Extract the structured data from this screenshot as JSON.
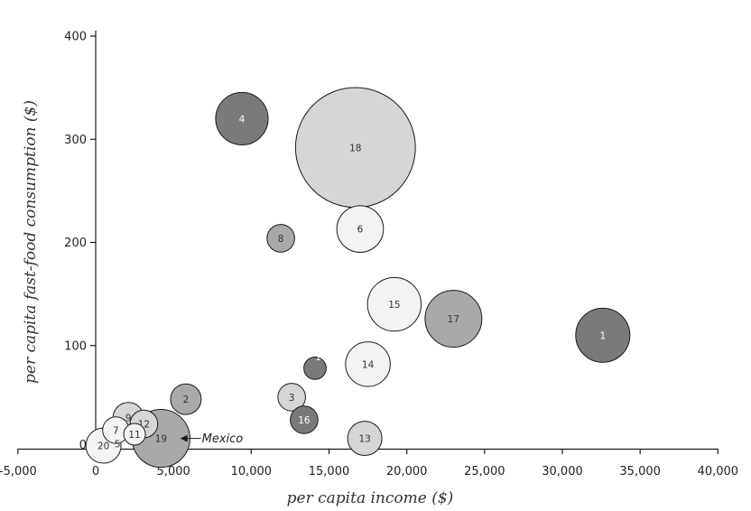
{
  "chart_data": {
    "type": "scatter",
    "title": "",
    "xlabel": "per capita income ($)",
    "ylabel": "per capita fast-food consumption ($)",
    "xlim": [
      -5000,
      40000
    ],
    "ylim": [
      0,
      400
    ],
    "x_ticks": [
      -5000,
      0,
      5000,
      10000,
      15000,
      20000,
      25000,
      30000,
      35000,
      40000
    ],
    "x_tick_labels": [
      "-5,000",
      "0",
      "5,000",
      "10,000",
      "15,000",
      "20,000",
      "25,000",
      "30,000",
      "35,000",
      "40,000"
    ],
    "y_ticks": [
      100,
      200,
      300,
      400
    ],
    "y_tick_labels": [
      "100",
      "200",
      "300",
      "400"
    ],
    "y_zero_label": "0",
    "grid": false,
    "legend": "none",
    "colors": {
      "light": "#f3f3f3",
      "mid_light": "#d6d6d6",
      "mid": "#a9a9a9",
      "dark": "#7a7a7a",
      "stroke": "#1a1a1a"
    },
    "points": [
      {
        "label": "1",
        "x": 32600,
        "y": 110,
        "size": 1.0,
        "tone": "dark"
      },
      {
        "label": "2",
        "x": 5800,
        "y": 48,
        "size": 0.32,
        "tone": "mid"
      },
      {
        "label": "3",
        "x": 12600,
        "y": 50,
        "size": 0.26,
        "tone": "mid_light"
      },
      {
        "label": "4",
        "x": 9400,
        "y": 320,
        "size": 0.94,
        "tone": "dark"
      },
      {
        "label": "5",
        "x": 1400,
        "y": 5,
        "size": 0.0,
        "tone": "none"
      },
      {
        "label": "6",
        "x": 17000,
        "y": 213,
        "size": 0.74,
        "tone": "light"
      },
      {
        "label": "7",
        "x": 1300,
        "y": 18,
        "size": 0.24,
        "tone": "light"
      },
      {
        "label": "8",
        "x": 11900,
        "y": 204,
        "size": 0.26,
        "tone": "mid"
      },
      {
        "label": "9",
        "x": 2100,
        "y": 30,
        "size": 0.32,
        "tone": "mid_light"
      },
      {
        "label": "10",
        "x": 14100,
        "y": 78,
        "size": 0.17,
        "tone": "dark"
      },
      {
        "label": "11",
        "x": 2500,
        "y": 14,
        "size": 0.16,
        "tone": "light"
      },
      {
        "label": "12",
        "x": 3100,
        "y": 24,
        "size": 0.26,
        "tone": "mid_light"
      },
      {
        "label": "13",
        "x": 17300,
        "y": 10,
        "size": 0.4,
        "tone": "mid_light"
      },
      {
        "label": "14",
        "x": 17500,
        "y": 82,
        "size": 0.68,
        "tone": "light"
      },
      {
        "label": "15",
        "x": 19200,
        "y": 140,
        "size": 0.98,
        "tone": "light"
      },
      {
        "label": "16",
        "x": 13400,
        "y": 28,
        "size": 0.26,
        "tone": "dark"
      },
      {
        "label": "17",
        "x": 23000,
        "y": 126,
        "size": 1.1,
        "tone": "mid"
      },
      {
        "label": "18",
        "x": 16700,
        "y": 292,
        "size": 4.9,
        "tone": "mid_light"
      },
      {
        "label": "19",
        "x": 4200,
        "y": 10,
        "size": 1.14,
        "tone": "mid"
      },
      {
        "label": "20",
        "x": 500,
        "y": 3,
        "size": 0.42,
        "tone": "light"
      }
    ],
    "annotations": [
      {
        "text": "Mexico",
        "x": 7000,
        "y": 10,
        "points_to": "19"
      }
    ]
  }
}
